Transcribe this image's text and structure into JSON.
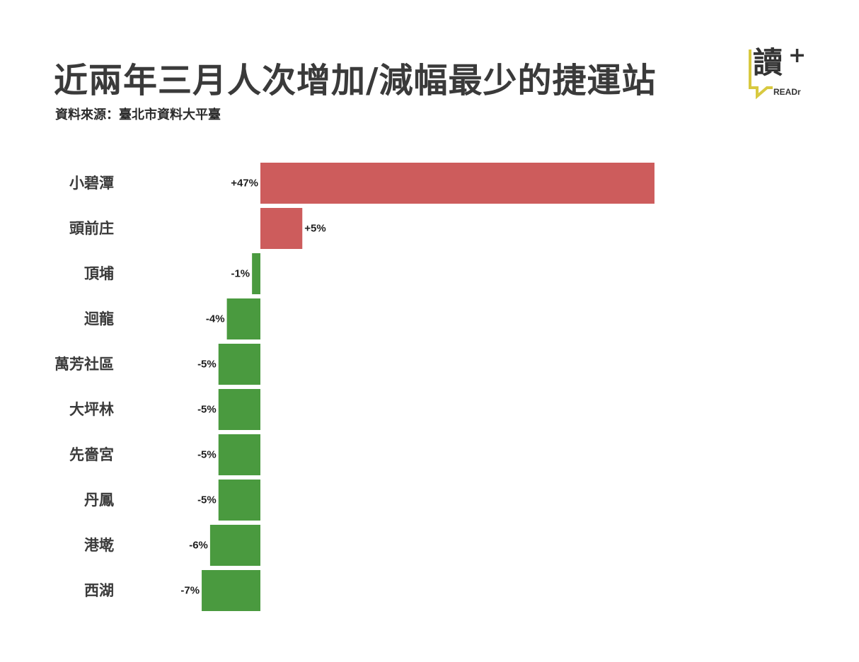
{
  "title": "近兩年三月人次增加/減幅最少的捷運站",
  "source": "資料來源：臺北市資料大平臺",
  "logo": {
    "char": "讀",
    "plus": "+",
    "text": "READr",
    "accent_color": "#d8c940"
  },
  "colors": {
    "positive": "#cd5c5c",
    "negative": "#4a9a3f"
  },
  "chart_data": {
    "type": "bar",
    "orientation": "horizontal",
    "categories": [
      "小碧潭",
      "頭前庄",
      "頂埔",
      "迴龍",
      "萬芳社區",
      "大坪林",
      "先嗇宮",
      "丹鳳",
      "港墘",
      "西湖"
    ],
    "values": [
      47,
      5,
      -1,
      -4,
      -5,
      -5,
      -5,
      -5,
      -6,
      -7
    ],
    "labels": [
      "+47%",
      "+5%",
      "-1%",
      "-4%",
      "-5%",
      "-5%",
      "-5%",
      "-5%",
      "-6%",
      "-7%"
    ],
    "unit": "%",
    "title": "近兩年三月人次增加/減幅最少的捷運站",
    "xlabel": "",
    "ylabel": "",
    "grid": false,
    "legend": "none"
  }
}
